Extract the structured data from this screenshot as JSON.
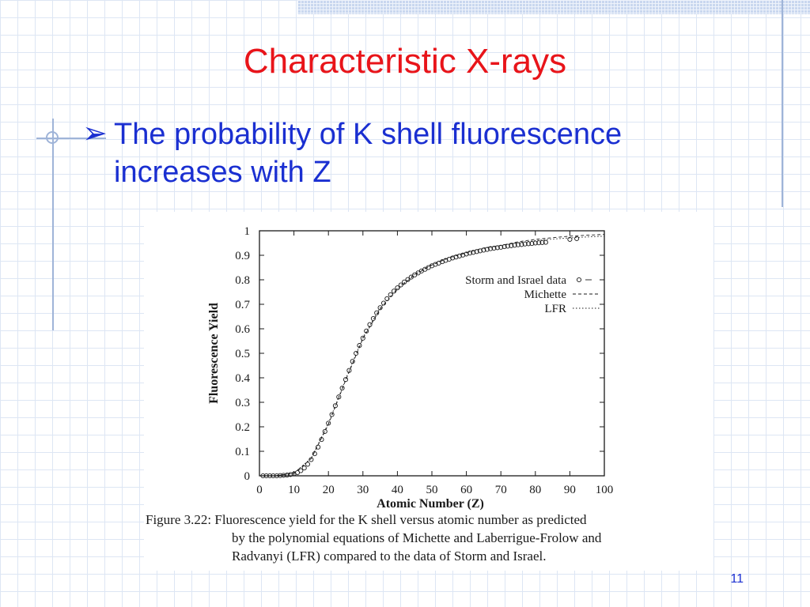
{
  "slide": {
    "title": "Characteristic X-rays",
    "bullet_marker": "➢",
    "bullet_line1": "The probability of K shell fluorescence",
    "bullet_line2": "increases with Z",
    "page_number": "11"
  },
  "caption": {
    "label": "Figure 3.22:",
    "line1": "Fluorescence yield for the K shell versus atomic number as predicted",
    "line2": "by the polynomial equations of Michette and Laberrigue-Frolow and",
    "line3": "Radvanyi (LFR) compared to the data of Storm and Israel."
  },
  "colors": {
    "title": "#e8141a",
    "bullet": "#1a2fd1",
    "plot_ink": "#1a1a1a"
  },
  "chart_data": {
    "type": "scatter",
    "xlabel": "Atomic Number (Z)",
    "ylabel": "Fluorescence Yield",
    "xlim": [
      0,
      100
    ],
    "ylim": [
      0,
      1
    ],
    "x_ticks": [
      0,
      10,
      20,
      30,
      40,
      50,
      60,
      70,
      80,
      90,
      100
    ],
    "y_ticks": [
      0,
      0.1,
      0.2,
      0.3,
      0.4,
      0.5,
      0.6,
      0.7,
      0.8,
      0.9,
      1
    ],
    "y_tick_labels": [
      "0",
      "0.1",
      "0.2",
      "0.3",
      "0.4",
      "0.5",
      "0.6",
      "0.7",
      "0.8",
      "0.9",
      "1"
    ],
    "legend_position": "right",
    "series": [
      {
        "name": "Storm and Israel data",
        "style": "markers",
        "x": [
          1,
          2,
          3,
          4,
          5,
          6,
          7,
          8,
          9,
          10,
          11,
          12,
          13,
          14,
          15,
          16,
          17,
          18,
          19,
          20,
          21,
          22,
          23,
          24,
          25,
          26,
          27,
          28,
          29,
          30,
          31,
          32,
          33,
          34,
          35,
          36,
          37,
          38,
          39,
          40,
          41,
          42,
          43,
          44,
          45,
          46,
          47,
          48,
          49,
          50,
          51,
          52,
          53,
          54,
          55,
          56,
          57,
          58,
          59,
          60,
          61,
          62,
          63,
          64,
          65,
          66,
          67,
          68,
          69,
          70,
          71,
          72,
          73,
          74,
          75,
          76,
          77,
          78,
          79,
          80,
          81,
          82,
          83,
          90,
          92
        ],
        "y": [
          0.0,
          0.0,
          0.0,
          0.0,
          0.0,
          0.001,
          0.002,
          0.003,
          0.005,
          0.008,
          0.013,
          0.021,
          0.032,
          0.047,
          0.066,
          0.09,
          0.117,
          0.148,
          0.181,
          0.215,
          0.25,
          0.286,
          0.322,
          0.358,
          0.393,
          0.43,
          0.467,
          0.5,
          0.532,
          0.562,
          0.591,
          0.617,
          0.642,
          0.665,
          0.686,
          0.705,
          0.723,
          0.739,
          0.754,
          0.767,
          0.779,
          0.791,
          0.801,
          0.811,
          0.82,
          0.828,
          0.836,
          0.843,
          0.85,
          0.857,
          0.863,
          0.868,
          0.874,
          0.879,
          0.884,
          0.889,
          0.893,
          0.897,
          0.901,
          0.905,
          0.909,
          0.912,
          0.915,
          0.918,
          0.921,
          0.924,
          0.927,
          0.929,
          0.931,
          0.933,
          0.935,
          0.937,
          0.939,
          0.941,
          0.943,
          0.944,
          0.946,
          0.947,
          0.948,
          0.95,
          0.951,
          0.952,
          0.953,
          0.965,
          0.968
        ]
      },
      {
        "name": "Michette",
        "style": "dashed",
        "x": [
          5,
          10,
          15,
          20,
          25,
          30,
          35,
          40,
          45,
          50,
          55,
          60,
          65,
          70,
          75,
          80,
          85,
          90,
          95,
          100
        ],
        "y": [
          0.001,
          0.01,
          0.07,
          0.21,
          0.39,
          0.56,
          0.68,
          0.76,
          0.82,
          0.86,
          0.89,
          0.91,
          0.93,
          0.94,
          0.955,
          0.965,
          0.972,
          0.978,
          0.982,
          0.985
        ]
      },
      {
        "name": "LFR",
        "style": "dotted",
        "x": [
          5,
          10,
          15,
          20,
          25,
          30,
          35,
          40,
          45,
          50,
          55,
          60,
          65,
          70,
          75,
          80,
          85,
          90,
          95,
          100
        ],
        "y": [
          0.001,
          0.011,
          0.072,
          0.215,
          0.395,
          0.565,
          0.685,
          0.765,
          0.823,
          0.862,
          0.892,
          0.912,
          0.928,
          0.941,
          0.951,
          0.96,
          0.966,
          0.971,
          0.975,
          0.978
        ]
      }
    ]
  }
}
